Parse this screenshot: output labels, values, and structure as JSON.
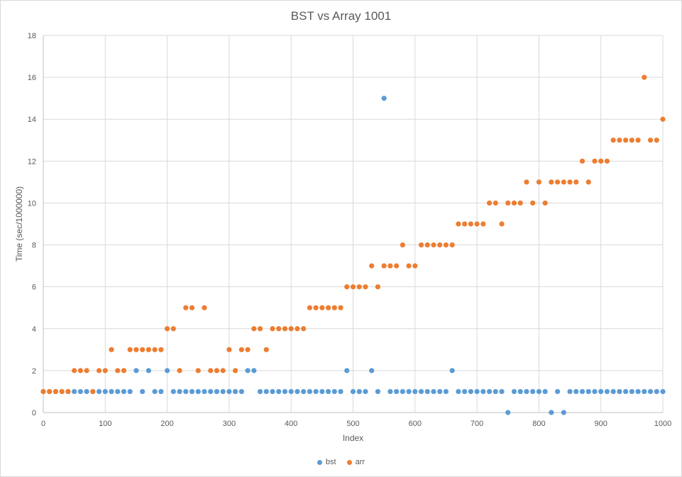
{
  "chart_data": {
    "type": "scatter",
    "title": "BST vs Array 1001",
    "xlabel": "Index",
    "ylabel": "Time (sec/1000000)",
    "xlim": [
      0,
      1000
    ],
    "ylim": [
      0,
      18
    ],
    "xticks": [
      0,
      100,
      200,
      300,
      400,
      500,
      600,
      700,
      800,
      900,
      1000
    ],
    "yticks": [
      0,
      2,
      4,
      6,
      8,
      10,
      12,
      14,
      16,
      18
    ],
    "grid": true,
    "legend_position": "bottom",
    "x": [
      0,
      10,
      20,
      30,
      40,
      50,
      60,
      70,
      80,
      90,
      100,
      110,
      120,
      130,
      140,
      150,
      160,
      170,
      180,
      190,
      200,
      210,
      220,
      230,
      240,
      250,
      260,
      270,
      280,
      290,
      300,
      310,
      320,
      330,
      340,
      350,
      360,
      370,
      380,
      390,
      400,
      410,
      420,
      430,
      440,
      450,
      460,
      470,
      480,
      490,
      500,
      510,
      520,
      530,
      540,
      550,
      560,
      570,
      580,
      590,
      600,
      610,
      620,
      630,
      640,
      650,
      660,
      670,
      680,
      690,
      700,
      710,
      720,
      730,
      740,
      750,
      760,
      770,
      780,
      790,
      800,
      810,
      820,
      830,
      840,
      850,
      860,
      870,
      880,
      890,
      900,
      910,
      920,
      930,
      940,
      950,
      960,
      970,
      980,
      990,
      1000
    ],
    "series": [
      {
        "name": "bst",
        "color": "#5b9bd5",
        "values": [
          1,
          1,
          1,
          1,
          1,
          1,
          1,
          1,
          1,
          1,
          1,
          1,
          1,
          1,
          1,
          2,
          1,
          2,
          1,
          1,
          2,
          1,
          1,
          1,
          1,
          1,
          1,
          1,
          1,
          1,
          1,
          1,
          1,
          2,
          2,
          1,
          1,
          1,
          1,
          1,
          1,
          1,
          1,
          1,
          1,
          1,
          1,
          1,
          1,
          2,
          1,
          1,
          1,
          2,
          1,
          15,
          1,
          1,
          1,
          1,
          1,
          1,
          1,
          1,
          1,
          1,
          2,
          1,
          1,
          1,
          1,
          1,
          1,
          1,
          1,
          0,
          1,
          1,
          1,
          1,
          1,
          1,
          0,
          1,
          0,
          1,
          1,
          1,
          1,
          1,
          1,
          1,
          1,
          1,
          1,
          1,
          1,
          1,
          1,
          1,
          1
        ]
      },
      {
        "name": "arr",
        "color": "#ed7d31",
        "values": [
          1,
          1,
          1,
          1,
          1,
          2,
          2,
          2,
          1,
          2,
          2,
          3,
          2,
          2,
          3,
          3,
          3,
          3,
          3,
          3,
          4,
          4,
          2,
          5,
          5,
          2,
          5,
          2,
          2,
          2,
          3,
          2,
          3,
          3,
          4,
          4,
          3,
          4,
          4,
          4,
          4,
          4,
          4,
          5,
          5,
          5,
          5,
          5,
          5,
          6,
          6,
          6,
          6,
          7,
          6,
          7,
          7,
          7,
          8,
          7,
          7,
          8,
          8,
          8,
          8,
          8,
          8,
          9,
          9,
          9,
          9,
          9,
          10,
          10,
          9,
          10,
          10,
          10,
          11,
          10,
          11,
          10,
          11,
          11,
          11,
          11,
          11,
          12,
          11,
          12,
          12,
          12,
          13,
          13,
          13,
          13,
          13,
          16,
          13,
          13,
          14
        ]
      }
    ]
  }
}
